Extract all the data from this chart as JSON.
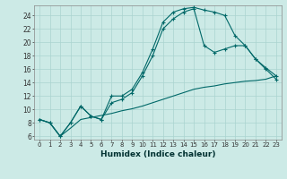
{
  "xlabel": "Humidex (Indice chaleur)",
  "ylabel": "",
  "xlim": [
    -0.5,
    23.5
  ],
  "ylim": [
    5.5,
    25.5
  ],
  "bg_color": "#cceae6",
  "grid_color": "#aad4d0",
  "line_color": "#006868",
  "xticks": [
    0,
    1,
    2,
    3,
    4,
    5,
    6,
    7,
    8,
    9,
    10,
    11,
    12,
    13,
    14,
    15,
    16,
    17,
    18,
    19,
    20,
    21,
    22,
    23
  ],
  "yticks": [
    6,
    8,
    10,
    12,
    14,
    16,
    18,
    20,
    22,
    24
  ],
  "line1_x": [
    0,
    1,
    2,
    3,
    4,
    5,
    6,
    7,
    8,
    9,
    10,
    11,
    12,
    13,
    14,
    15,
    16,
    17,
    18,
    19,
    20,
    21,
    22,
    23
  ],
  "line1_y": [
    8.5,
    8.0,
    6.0,
    8.0,
    10.5,
    9.0,
    8.5,
    12.0,
    12.0,
    13.0,
    15.5,
    19.0,
    23.0,
    24.5,
    25.0,
    25.2,
    24.8,
    24.5,
    24.0,
    21.0,
    19.5,
    17.5,
    16.2,
    15.0
  ],
  "line2_x": [
    0,
    1,
    2,
    3,
    4,
    5,
    6,
    7,
    8,
    9,
    10,
    11,
    12,
    13,
    14,
    15,
    16,
    17,
    18,
    19,
    20,
    21,
    22,
    23
  ],
  "line2_y": [
    8.5,
    8.0,
    6.0,
    8.0,
    10.5,
    9.0,
    8.5,
    11.0,
    11.5,
    12.5,
    15.0,
    18.0,
    22.0,
    23.5,
    24.5,
    25.0,
    19.5,
    18.5,
    19.0,
    19.5,
    19.5,
    17.5,
    16.0,
    14.5
  ],
  "line3_x": [
    0,
    1,
    2,
    3,
    4,
    5,
    6,
    7,
    8,
    9,
    10,
    11,
    12,
    13,
    14,
    15,
    16,
    17,
    18,
    19,
    20,
    21,
    22,
    23
  ],
  "line3_y": [
    8.5,
    8.0,
    6.0,
    7.2,
    8.5,
    8.8,
    9.1,
    9.4,
    9.8,
    10.1,
    10.5,
    11.0,
    11.5,
    12.0,
    12.5,
    13.0,
    13.3,
    13.5,
    13.8,
    14.0,
    14.2,
    14.3,
    14.5,
    15.0
  ]
}
